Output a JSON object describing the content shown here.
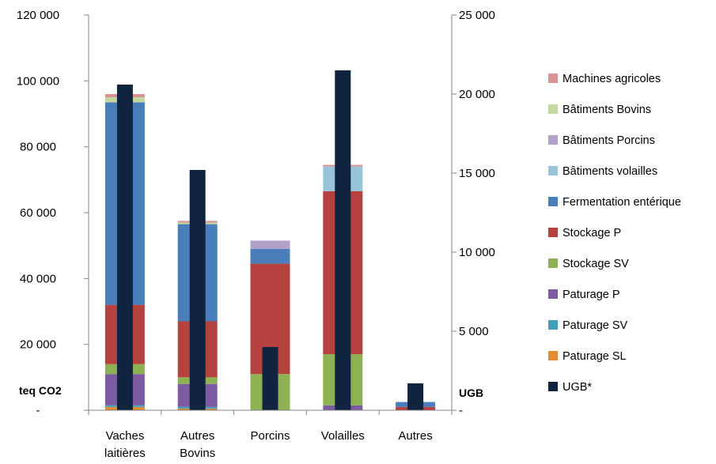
{
  "chart_data": {
    "type": "bar",
    "stacked": true,
    "categories": [
      [
        "Vaches",
        "laitières"
      ],
      [
        "Autres",
        "Bovins"
      ],
      [
        "Porcins"
      ],
      [
        "Volailles"
      ],
      [
        "Autres"
      ]
    ],
    "y_left": {
      "unit_label": "teq CO2",
      "ylim": [
        0,
        120000
      ],
      "ticks": [
        0,
        20000,
        40000,
        60000,
        80000,
        100000,
        120000
      ],
      "tick_labels": [
        "-",
        "20 000",
        "40 000",
        "60 000",
        "80 000",
        "100 000",
        "120 000"
      ]
    },
    "y_right": {
      "unit_label": "UGB",
      "ylim": [
        0,
        25000
      ],
      "ticks": [
        0,
        5000,
        10000,
        15000,
        20000,
        25000
      ],
      "tick_labels": [
        "-",
        "5 000",
        "10 000",
        "15 000",
        "20 000",
        "25 000"
      ]
    },
    "grid": false,
    "legend_position": "right",
    "series": [
      {
        "name": "Paturage SL",
        "color": "#E38A35",
        "values": [
          1000,
          500,
          0,
          0,
          0
        ]
      },
      {
        "name": "Paturage SV",
        "color": "#3FA0B8",
        "values": [
          500,
          500,
          0,
          0,
          0
        ]
      },
      {
        "name": "Paturage P",
        "color": "#7C5BA3",
        "values": [
          9500,
          7000,
          0,
          1500,
          0
        ]
      },
      {
        "name": "Stockage SV",
        "color": "#8DB153",
        "values": [
          3000,
          2000,
          11000,
          15500,
          0
        ]
      },
      {
        "name": "Stockage P",
        "color": "#B6423F",
        "values": [
          18000,
          17000,
          33500,
          49500,
          1000
        ]
      },
      {
        "name": "Fermentation entérique",
        "color": "#4A7EBB",
        "values": [
          61500,
          29500,
          4500,
          0,
          1500
        ]
      },
      {
        "name": "Bâtiments volailles",
        "color": "#98C6D8",
        "values": [
          0,
          0,
          0,
          7500,
          0
        ]
      },
      {
        "name": "Bâtiments Porcins",
        "color": "#B2A2C9",
        "values": [
          0,
          0,
          2500,
          0,
          0
        ]
      },
      {
        "name": "Bâtiments Bovins",
        "color": "#C4D99F",
        "values": [
          1500,
          500,
          0,
          0,
          0
        ]
      },
      {
        "name": "Machines agricoles",
        "color": "#D99395",
        "values": [
          1000,
          500,
          0,
          500,
          0
        ]
      }
    ],
    "overlay_series": {
      "name": "UGB*",
      "color": "#10243F",
      "axis": "right",
      "values": [
        20600,
        15200,
        4000,
        21500,
        1700
      ]
    },
    "legend_order": [
      "Machines agricoles",
      "Bâtiments Bovins",
      "Bâtiments Porcins",
      "Bâtiments volailles",
      "Fermentation entérique",
      "Stockage P",
      "Stockage SV",
      "Paturage P",
      "Paturage SV",
      "Paturage SL",
      "UGB*"
    ]
  }
}
